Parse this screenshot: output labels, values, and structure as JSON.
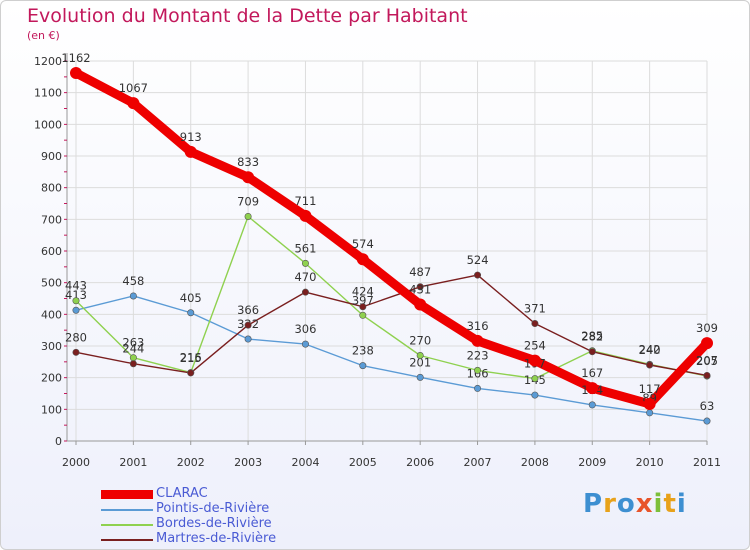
{
  "title": "Evolution du Montant de la Dette par Habitant",
  "subtitle": "(en €)",
  "logo": {
    "text": "Proxiti",
    "colors": [
      "#3d8fd1",
      "#e8a21a",
      "#3d8fd1",
      "#e8542a",
      "#7cbf3a",
      "#e8a21a",
      "#3d8fd1"
    ]
  },
  "chart_data": {
    "type": "line",
    "x": [
      "2000",
      "2001",
      "2002",
      "2003",
      "2004",
      "2005",
      "2006",
      "2007",
      "2008",
      "2009",
      "2010",
      "2011"
    ],
    "ylim": [
      0,
      1200
    ],
    "yticks": [
      "0",
      "100",
      "200",
      "300",
      "400",
      "500",
      "600",
      "700",
      "800",
      "900",
      "1000",
      "1100",
      "1200"
    ],
    "grid": true,
    "legend_position": "bottom-left",
    "series": [
      {
        "name": "Pointis-de-Rivière",
        "color": "#5b9bd5",
        "values": [
          413,
          458,
          405,
          322,
          306,
          238,
          201,
          166,
          145,
          114,
          89,
          63
        ],
        "labels": [
          "413",
          "458",
          "405",
          "322",
          "306",
          "238",
          "201",
          "166",
          "145",
          "114",
          "89",
          "63"
        ]
      },
      {
        "name": "Bordes-de-Rivière",
        "color": "#8fd14f",
        "values": [
          443,
          263,
          216,
          709,
          561,
          397,
          270,
          223,
          197,
          285,
          242,
          205
        ],
        "labels": [
          "443",
          "263",
          "216",
          "709",
          "561",
          "397",
          "270",
          "223",
          "197",
          "285",
          "242",
          "205"
        ]
      },
      {
        "name": "Martres-de-Rivière",
        "color": "#7a1f1f",
        "values": [
          280,
          244,
          215,
          366,
          470,
          424,
          487,
          524,
          371,
          282,
          240,
          207
        ],
        "labels": [
          "280",
          "244",
          "215",
          "366",
          "470",
          "424",
          "487",
          "524",
          "371",
          "282",
          "240",
          "207"
        ]
      },
      {
        "name": "CLARAC",
        "color": "#ee0000",
        "values": [
          1162,
          1067,
          913,
          833,
          711,
          574,
          431,
          316,
          254,
          167,
          117,
          309
        ],
        "labels": [
          "1162",
          "1067",
          "913",
          "833",
          "711",
          "574",
          "431",
          "316",
          "254",
          "167",
          "117",
          "309"
        ]
      }
    ]
  },
  "legend": [
    {
      "name": "CLARAC",
      "color": "#ee0000",
      "thick": true
    },
    {
      "name": "Pointis-de-Rivière",
      "color": "#5b9bd5",
      "thick": false
    },
    {
      "name": "Bordes-de-Rivière",
      "color": "#8fd14f",
      "thick": false
    },
    {
      "name": "Martres-de-Rivière",
      "color": "#7a1f1f",
      "thick": false
    }
  ]
}
